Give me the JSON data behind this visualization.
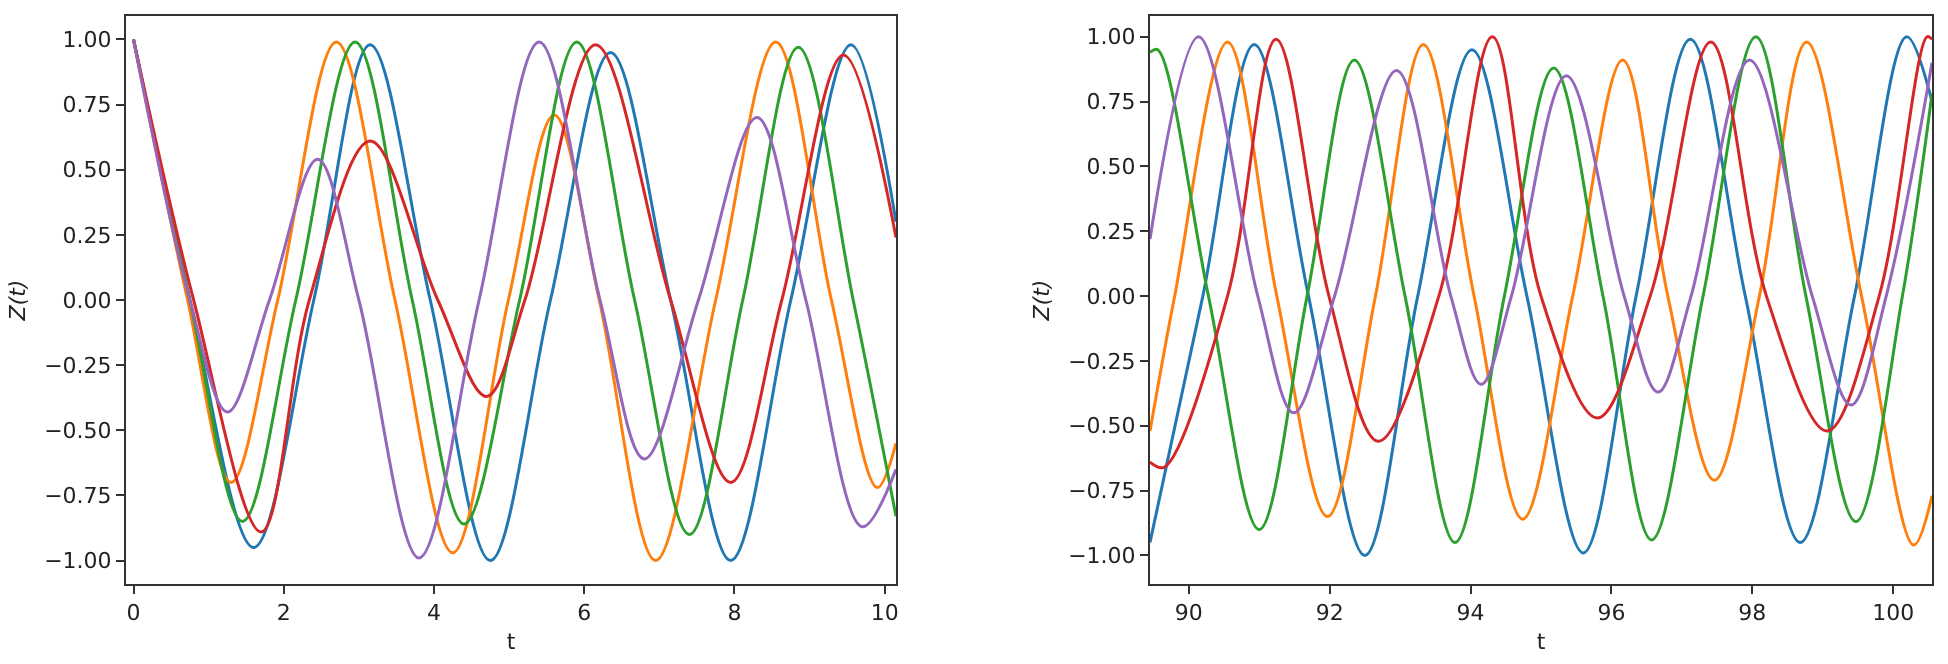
{
  "chart_data": [
    {
      "type": "line",
      "xlabel": "t",
      "ylabel": "Z(t)",
      "xlim": [
        -0.1,
        10.15
      ],
      "ylim": [
        -1.09,
        1.09
      ],
      "xticks": [
        0,
        2,
        4,
        6,
        8,
        10
      ],
      "yticks": [
        {
          "value": -1,
          "label": "−1.00"
        },
        {
          "value": -0.75,
          "label": "−0.75"
        },
        {
          "value": -0.5,
          "label": "−0.50"
        },
        {
          "value": -0.25,
          "label": "−0.25"
        },
        {
          "value": 0,
          "label": "0.00"
        },
        {
          "value": 0.25,
          "label": "0.25"
        },
        {
          "value": 0.5,
          "label": "0.50"
        },
        {
          "value": 0.75,
          "label": "0.75"
        },
        {
          "value": 1,
          "label": "1.00"
        }
      ],
      "series": [
        {
          "color": "#1f77b4",
          "x": [
            0,
            0.75,
            1.6,
            2.4,
            3.15,
            3.95,
            4.75,
            5.55,
            6.35,
            7.15,
            7.95,
            8.75,
            9.55,
            10.15
          ],
          "values": [
            1,
            0,
            -0.95,
            0,
            0.98,
            0,
            -1.0,
            0,
            0.95,
            0,
            -1.0,
            0,
            0.98,
            0.3
          ]
        },
        {
          "color": "#ff7f0e",
          "x": [
            0,
            0.72,
            1.3,
            1.92,
            2.7,
            3.48,
            4.25,
            4.99,
            5.6,
            6.2,
            6.95,
            7.75,
            8.55,
            9.29,
            9.9,
            10.15
          ],
          "values": [
            1,
            0,
            -0.7,
            0,
            0.99,
            0,
            -0.97,
            0,
            0.71,
            0,
            -1.0,
            0,
            0.99,
            0,
            -0.72,
            -0.55
          ]
        },
        {
          "color": "#2ca02c",
          "x": [
            0,
            0.75,
            1.45,
            2.16,
            2.95,
            3.71,
            4.4,
            5.14,
            5.9,
            6.67,
            7.4,
            8.11,
            8.85,
            9.58,
            10.15
          ],
          "values": [
            1,
            0,
            -0.85,
            0,
            0.99,
            0,
            -0.86,
            0,
            0.99,
            0,
            -0.9,
            0,
            0.97,
            0,
            -0.83
          ]
        },
        {
          "color": "#d62728",
          "x": [
            0,
            0.8,
            1.7,
            2.34,
            3.15,
            4.05,
            4.7,
            5.21,
            6.15,
            7.15,
            7.95,
            8.63,
            9.45,
            10.15
          ],
          "values": [
            1,
            0,
            -0.89,
            0,
            0.61,
            0,
            -0.37,
            0,
            0.98,
            0,
            -0.7,
            0,
            0.94,
            0.24
          ]
        },
        {
          "color": "#9467bd",
          "x": [
            0,
            0.75,
            1.25,
            1.81,
            2.45,
            3.0,
            3.8,
            4.6,
            5.4,
            6.21,
            6.8,
            7.52,
            8.3,
            8.95,
            9.7,
            10.15
          ],
          "values": [
            1,
            0,
            -0.43,
            0,
            0.54,
            0,
            -0.99,
            0,
            0.99,
            0,
            -0.61,
            0,
            0.7,
            0,
            -0.87,
            -0.65
          ]
        }
      ]
    },
    {
      "type": "line",
      "xlabel": "t",
      "ylabel": "Z(t)",
      "xlim": [
        89.45,
        100.55
      ],
      "ylim": [
        -1.11,
        1.08
      ],
      "xticks": [
        90,
        92,
        94,
        96,
        98,
        100
      ],
      "yticks": [
        {
          "value": -1,
          "label": "−1.00"
        },
        {
          "value": -0.75,
          "label": "−0.75"
        },
        {
          "value": -0.5,
          "label": "−0.50"
        },
        {
          "value": -0.25,
          "label": "−0.25"
        },
        {
          "value": 0,
          "label": "0.00"
        },
        {
          "value": 0.25,
          "label": "0.25"
        },
        {
          "value": 0.5,
          "label": "0.50"
        },
        {
          "value": 0.75,
          "label": "0.75"
        },
        {
          "value": 1,
          "label": "1.00"
        }
      ],
      "series": [
        {
          "color": "#1f77b4",
          "x": [
            89.45,
            90.2,
            90.93,
            91.7,
            92.5,
            93.25,
            94.02,
            94.8,
            95.6,
            96.35,
            97.12,
            97.9,
            98.68,
            99.45,
            100.19,
            100.55
          ],
          "values": [
            -0.95,
            0,
            0.97,
            0,
            -1.0,
            0,
            0.95,
            0,
            -0.99,
            0,
            0.99,
            0,
            -0.95,
            0,
            1.0,
            0.75
          ]
        },
        {
          "color": "#ff7f0e",
          "x": [
            89.45,
            89.8,
            90.55,
            91.25,
            91.97,
            92.65,
            93.33,
            94.05,
            94.74,
            95.45,
            96.16,
            96.8,
            97.46,
            98.1,
            98.77,
            99.55,
            100.29,
            100.55
          ],
          "values": [
            -0.52,
            0,
            0.98,
            0,
            -0.85,
            0,
            0.97,
            0,
            -0.86,
            0,
            0.91,
            0,
            -0.71,
            0,
            0.98,
            0,
            -0.96,
            -0.77
          ]
        },
        {
          "color": "#2ca02c",
          "x": [
            89.45,
            89.56,
            90.28,
            91.0,
            91.68,
            92.35,
            93.07,
            93.78,
            94.48,
            95.18,
            95.88,
            96.57,
            97.3,
            98.05,
            98.76,
            99.47,
            100.13,
            100.55
          ],
          "values": [
            0.94,
            0.95,
            0,
            -0.9,
            0,
            0.91,
            0,
            -0.95,
            0,
            0.88,
            0,
            -0.94,
            0,
            1.0,
            0,
            -0.87,
            0,
            0.78
          ]
        },
        {
          "color": "#d62728",
          "x": [
            89.45,
            89.65,
            90.55,
            91.24,
            91.99,
            92.69,
            93.55,
            94.31,
            95.0,
            95.8,
            96.55,
            97.41,
            98.2,
            99.06,
            99.8,
            100.48,
            100.55
          ],
          "values": [
            -0.64,
            -0.66,
            0,
            0.99,
            0,
            -0.56,
            0,
            1.0,
            0,
            -0.47,
            0,
            0.98,
            0,
            -0.52,
            0,
            1.0,
            0.99
          ]
        },
        {
          "color": "#9467bd",
          "x": [
            89.45,
            90.14,
            90.98,
            91.49,
            92.07,
            92.95,
            93.72,
            94.15,
            94.58,
            95.36,
            96.18,
            96.66,
            97.13,
            97.96,
            98.85,
            99.4,
            99.9,
            100.55
          ],
          "values": [
            0.22,
            1.0,
            0,
            -0.45,
            0,
            0.87,
            0,
            -0.34,
            0,
            0.85,
            0,
            -0.37,
            0,
            0.91,
            0,
            -0.42,
            0,
            0.9
          ]
        }
      ]
    }
  ]
}
